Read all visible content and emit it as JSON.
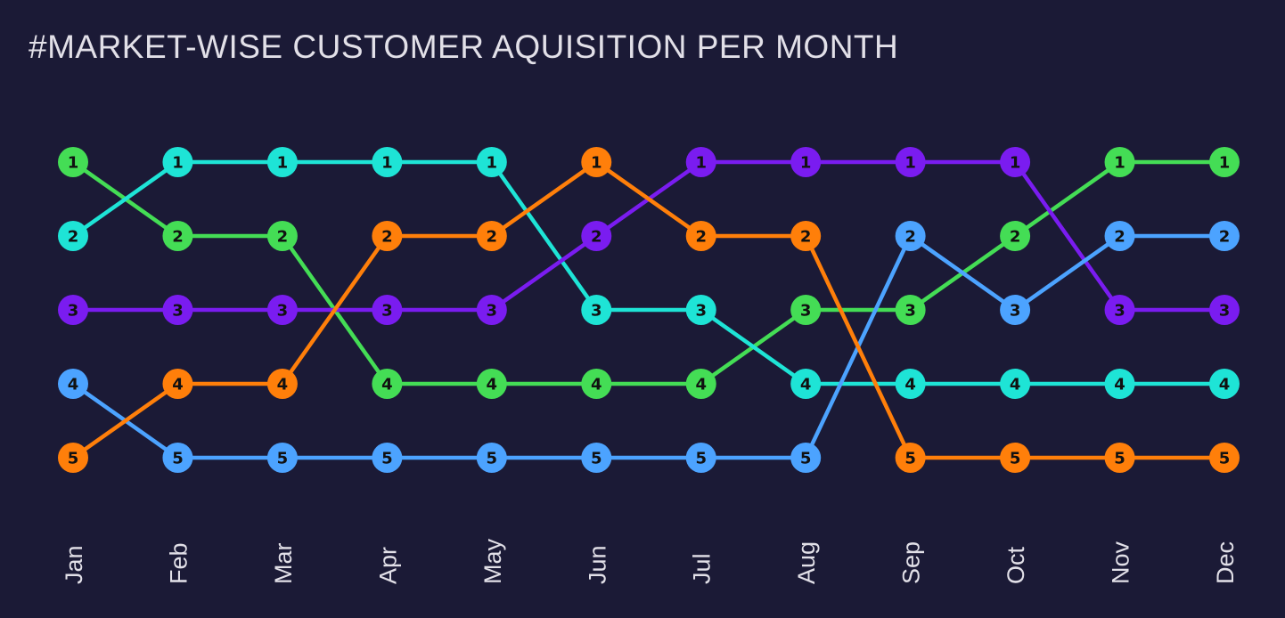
{
  "chart_data": {
    "type": "line",
    "title": "#MARKET-WISE CUSTOMER AQUISITION PER MONTH",
    "xlabel": "",
    "ylabel": "",
    "ylim": [
      5,
      1
    ],
    "grid": false,
    "legend": "none",
    "background": "#1b1a36",
    "text_color": "#e2e0e8",
    "categories": [
      "Jan",
      "Feb",
      "Mar",
      "Apr",
      "May",
      "Jun",
      "Jul",
      "Aug",
      "Sep",
      "Oct",
      "Nov",
      "Dec"
    ],
    "series": [
      {
        "color": "#44dd55",
        "values": [
          1,
          2,
          2,
          4,
          4,
          4,
          4,
          3,
          3,
          2,
          1,
          1
        ]
      },
      {
        "color": "#1ee4d6",
        "values": [
          2,
          1,
          1,
          1,
          1,
          3,
          3,
          4,
          4,
          4,
          4,
          4
        ]
      },
      {
        "color": "#7a1cf0",
        "values": [
          3,
          3,
          3,
          3,
          3,
          2,
          1,
          1,
          1,
          1,
          3,
          3
        ]
      },
      {
        "color": "#4ca3ff",
        "values": [
          4,
          5,
          5,
          5,
          5,
          5,
          5,
          5,
          2,
          3,
          2,
          2
        ]
      },
      {
        "color": "#ff7f0a",
        "values": [
          5,
          4,
          4,
          2,
          2,
          1,
          2,
          2,
          5,
          5,
          5,
          5
        ]
      }
    ]
  }
}
